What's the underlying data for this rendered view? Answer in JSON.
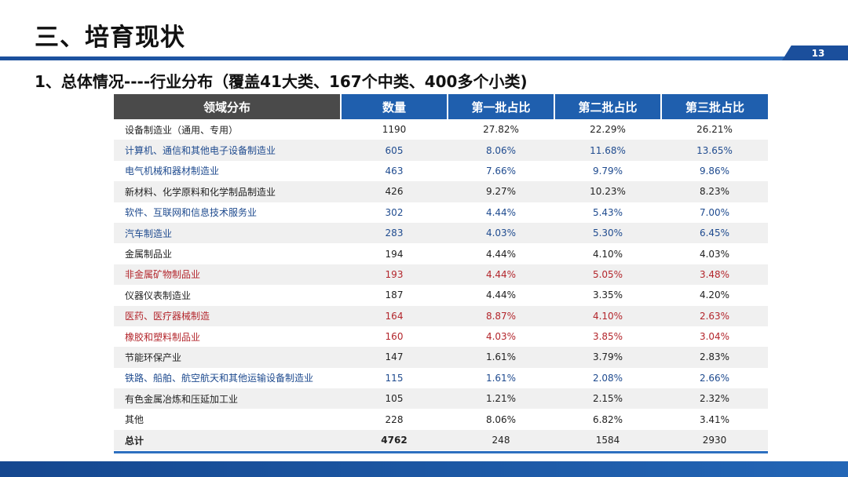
{
  "slide": {
    "title": "三、培育现状",
    "page_number": "13",
    "subtitle": "1、总体情况----行业分布（覆盖41大类、167个中类、400多个小类)"
  },
  "table": {
    "headers": [
      "领域分布",
      "数量",
      "第一批占比",
      "第二批占比",
      "第三批占比"
    ],
    "rows": [
      {
        "cells": [
          "设备制造业（通用、专用）",
          "1190",
          "27.82%",
          "22.29%",
          "26.21%"
        ],
        "color": "black"
      },
      {
        "cells": [
          "计算机、通信和其他电子设备制造业",
          "605",
          "8.06%",
          "11.68%",
          "13.65%"
        ],
        "color": "blue"
      },
      {
        "cells": [
          "电气机械和器材制造业",
          "463",
          "7.66%",
          "9.79%",
          "9.86%"
        ],
        "color": "blue"
      },
      {
        "cells": [
          "新材料、化学原料和化学制品制造业",
          "426",
          "9.27%",
          "10.23%",
          "8.23%"
        ],
        "color": "black"
      },
      {
        "cells": [
          "软件、互联网和信息技术服务业",
          "302",
          "4.44%",
          "5.43%",
          "7.00%"
        ],
        "color": "blue"
      },
      {
        "cells": [
          "汽车制造业",
          "283",
          "4.03%",
          "5.30%",
          "6.45%"
        ],
        "color": "blue"
      },
      {
        "cells": [
          "金属制品业",
          "194",
          "4.44%",
          "4.10%",
          "4.03%"
        ],
        "color": "black"
      },
      {
        "cells": [
          "非金属矿物制品业",
          "193",
          "4.44%",
          "5.05%",
          "3.48%"
        ],
        "color": "red"
      },
      {
        "cells": [
          "仪器仪表制造业",
          "187",
          "4.44%",
          "3.35%",
          "4.20%"
        ],
        "color": "black"
      },
      {
        "cells": [
          "医药、医疗器械制造",
          "164",
          "8.87%",
          "4.10%",
          "2.63%"
        ],
        "color": "red"
      },
      {
        "cells": [
          "橡胶和塑料制品业",
          "160",
          "4.03%",
          "3.85%",
          "3.04%"
        ],
        "color": "red"
      },
      {
        "cells": [
          "节能环保产业",
          "147",
          "1.61%",
          "3.79%",
          "2.83%"
        ],
        "color": "black"
      },
      {
        "cells": [
          "铁路、船舶、航空航天和其他运输设备制造业",
          "115",
          "1.61%",
          "2.08%",
          "2.66%"
        ],
        "color": "blue"
      },
      {
        "cells": [
          "有色金属冶炼和压延加工业",
          "105",
          "1.21%",
          "2.15%",
          "2.32%"
        ],
        "color": "black"
      },
      {
        "cells": [
          "其他",
          "228",
          "8.06%",
          "6.82%",
          "3.41%"
        ],
        "color": "black"
      },
      {
        "cells": [
          "总计",
          "4762",
          "248",
          "1584",
          "2930"
        ],
        "color": "black",
        "total": true
      }
    ]
  },
  "colors": {
    "accent_blue": "#1f5fae",
    "header_dark": "#4a4a4a",
    "row_alt": "#f0f0f0",
    "text_blue": "#1f4b8f",
    "text_red": "#b3262c"
  }
}
